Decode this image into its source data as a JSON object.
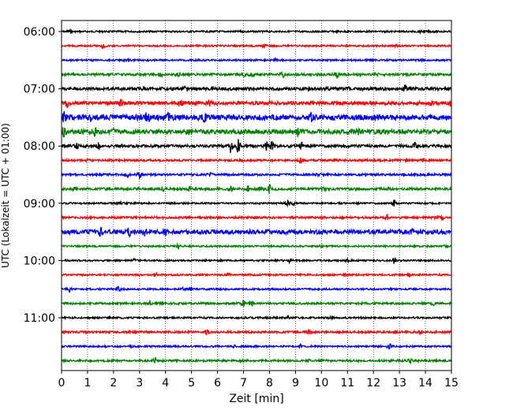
{
  "chart_data": {
    "type": "line",
    "title": "",
    "xlabel": "Zeit  [min]",
    "ylabel": "UTC (Lokalzeit = UTC + 01:00)",
    "xlim": [
      0,
      15
    ],
    "x_ticks": [
      "0",
      "1",
      "2",
      "3",
      "4",
      "5",
      "6",
      "7",
      "8",
      "9",
      "10",
      "11",
      "12",
      "13",
      "14",
      "15"
    ],
    "y_tick_labels": [
      "06:00",
      "07:00",
      "08:00",
      "09:00",
      "10:00",
      "11:00"
    ],
    "row_interval_min": 15,
    "start_time": "06:00",
    "grid_x": true,
    "colors": [
      "#000000",
      "#ff0000",
      "#0000ff",
      "#008000"
    ],
    "series": [
      {
        "start": "06:00",
        "color": "#000000",
        "amplitude": 0.5,
        "events": [
          [
            0.3,
            1.0
          ],
          [
            6.9,
            0.6
          ],
          [
            13.8,
            0.5
          ]
        ]
      },
      {
        "start": "06:15",
        "color": "#ff0000",
        "amplitude": 0.5,
        "events": [
          [
            1.6,
            1.0
          ],
          [
            7.8,
            1.4
          ],
          [
            12.9,
            0.6
          ]
        ]
      },
      {
        "start": "06:30",
        "color": "#0000ff",
        "amplitude": 0.5,
        "events": [
          [
            2.5,
            0.6
          ],
          [
            8.2,
            0.6
          ],
          [
            13.9,
            0.5
          ]
        ]
      },
      {
        "start": "06:45",
        "color": "#008000",
        "amplitude": 0.7,
        "events": [
          [
            3.8,
            0.9
          ],
          [
            4.5,
            1.0
          ],
          [
            7.0,
            0.8
          ],
          [
            7.3,
            1.0
          ],
          [
            8.5,
            1.8
          ],
          [
            10.6,
            2.0
          ],
          [
            12.1,
            0.7
          ],
          [
            13.3,
            0.8
          ]
        ]
      },
      {
        "start": "07:00",
        "color": "#000000",
        "amplitude": 0.9,
        "events": [
          [
            4.8,
            1.1
          ],
          [
            9.5,
            1.3
          ],
          [
            11.0,
            1.2
          ],
          [
            13.2,
            1.5
          ]
        ]
      },
      {
        "start": "07:15",
        "color": "#ff0000",
        "amplitude": 1.0,
        "events": [
          [
            0.2,
            2.0
          ],
          [
            2.3,
            1.6
          ],
          [
            4.6,
            1.3
          ],
          [
            5.7,
            1.4
          ],
          [
            8.0,
            1.2
          ],
          [
            14.2,
            1.5
          ],
          [
            15.0,
            1.8
          ]
        ]
      },
      {
        "start": "07:30",
        "color": "#0000ff",
        "amplitude": 1.6,
        "events": [
          [
            0.1,
            2.5
          ],
          [
            1.1,
            2.0
          ],
          [
            3.3,
            2.8
          ],
          [
            4.1,
            1.8
          ],
          [
            5.5,
            1.6
          ],
          [
            9.6,
            1.6
          ]
        ]
      },
      {
        "start": "07:45",
        "color": "#008000",
        "amplitude": 1.3,
        "events": [
          [
            0.1,
            2.8
          ],
          [
            1.3,
            2.0
          ],
          [
            2.0,
            1.4
          ],
          [
            9.1,
            2.0
          ],
          [
            11.4,
            1.4
          ]
        ]
      },
      {
        "start": "08:00",
        "color": "#000000",
        "amplitude": 0.8,
        "events": [
          [
            0.6,
            1.2
          ],
          [
            1.4,
            1.6
          ],
          [
            6.5,
            3.5
          ],
          [
            6.8,
            3.8
          ],
          [
            7.9,
            2.6
          ],
          [
            8.1,
            2.2
          ],
          [
            9.2,
            2.8
          ],
          [
            13.6,
            1.6
          ]
        ]
      },
      {
        "start": "08:15",
        "color": "#ff0000",
        "amplitude": 0.6,
        "events": [
          [
            1.0,
            0.8
          ],
          [
            9.2,
            1.5
          ],
          [
            13.9,
            0.6
          ]
        ]
      },
      {
        "start": "08:30",
        "color": "#0000ff",
        "amplitude": 0.6,
        "events": [
          [
            2.5,
            1.5
          ],
          [
            3.0,
            1.6
          ],
          [
            5.7,
            0.9
          ],
          [
            9.9,
            0.7
          ],
          [
            11.7,
            0.6
          ]
        ]
      },
      {
        "start": "08:45",
        "color": "#008000",
        "amplitude": 0.7,
        "events": [
          [
            0.5,
            0.9
          ],
          [
            3.9,
            0.9
          ],
          [
            4.9,
            1.1
          ],
          [
            6.5,
            1.5
          ],
          [
            7.2,
            1.8
          ],
          [
            7.6,
            1.3
          ],
          [
            8.0,
            2.2
          ],
          [
            10.1,
            1.0
          ],
          [
            12.6,
            0.7
          ]
        ]
      },
      {
        "start": "09:00",
        "color": "#000000",
        "amplitude": 0.5,
        "events": [
          [
            2.3,
            0.6
          ],
          [
            8.7,
            1.5
          ],
          [
            8.9,
            1.0
          ],
          [
            12.8,
            1.8
          ]
        ]
      },
      {
        "start": "09:15",
        "color": "#ff0000",
        "amplitude": 0.6,
        "events": [
          [
            7.5,
            0.7
          ],
          [
            12.5,
            1.6
          ],
          [
            14.6,
            1.4
          ]
        ]
      },
      {
        "start": "09:30",
        "color": "#0000ff",
        "amplitude": 1.3,
        "events": [
          [
            1.5,
            1.8
          ],
          [
            2.6,
            2.0
          ],
          [
            3.2,
            1.7
          ],
          [
            4.0,
            1.2
          ],
          [
            6.4,
            0.9
          ],
          [
            9.0,
            1.0
          ],
          [
            13.5,
            0.8
          ]
        ]
      },
      {
        "start": "09:45",
        "color": "#008000",
        "amplitude": 0.5,
        "events": [
          [
            4.5,
            1.6
          ],
          [
            10.0,
            0.6
          ],
          [
            14.8,
            1.0
          ]
        ]
      },
      {
        "start": "10:00",
        "color": "#000000",
        "amplitude": 0.5,
        "events": [
          [
            2.8,
            0.7
          ],
          [
            8.8,
            1.6
          ],
          [
            11.0,
            0.6
          ],
          [
            12.8,
            1.9
          ]
        ]
      },
      {
        "start": "10:15",
        "color": "#ff0000",
        "amplitude": 0.5,
        "events": [
          [
            3.6,
            1.0
          ],
          [
            6.4,
            0.8
          ],
          [
            10.9,
            1.0
          ],
          [
            13.4,
            0.7
          ]
        ]
      },
      {
        "start": "10:30",
        "color": "#0000ff",
        "amplitude": 0.5,
        "events": [
          [
            0.3,
            1.4
          ],
          [
            2.2,
            1.3
          ],
          [
            4.7,
            0.9
          ],
          [
            5.0,
            0.8
          ],
          [
            13.5,
            0.6
          ]
        ]
      },
      {
        "start": "10:45",
        "color": "#008000",
        "amplitude": 0.6,
        "events": [
          [
            3.4,
            1.3
          ],
          [
            7.0,
            1.5
          ],
          [
            7.3,
            1.6
          ],
          [
            14.3,
            0.7
          ]
        ]
      },
      {
        "start": "11:00",
        "color": "#000000",
        "amplitude": 0.5,
        "events": [
          [
            1.8,
            0.5
          ],
          [
            8.7,
            1.3
          ],
          [
            10.4,
            0.6
          ]
        ]
      },
      {
        "start": "11:15",
        "color": "#ff0000",
        "amplitude": 0.6,
        "events": [
          [
            5.6,
            1.0
          ],
          [
            9.5,
            1.2
          ],
          [
            13.8,
            1.2
          ]
        ]
      },
      {
        "start": "11:30",
        "color": "#0000ff",
        "amplitude": 0.5,
        "events": [
          [
            2.7,
            0.6
          ],
          [
            6.6,
            0.6
          ],
          [
            9.2,
            1.0
          ],
          [
            12.6,
            1.8
          ]
        ]
      },
      {
        "start": "11:45",
        "color": "#008000",
        "amplitude": 0.6,
        "events": [
          [
            3.6,
            1.3
          ],
          [
            6.9,
            0.8
          ],
          [
            9.5,
            0.7
          ],
          [
            10.0,
            0.7
          ],
          [
            13.4,
            1.0
          ]
        ]
      }
    ]
  }
}
